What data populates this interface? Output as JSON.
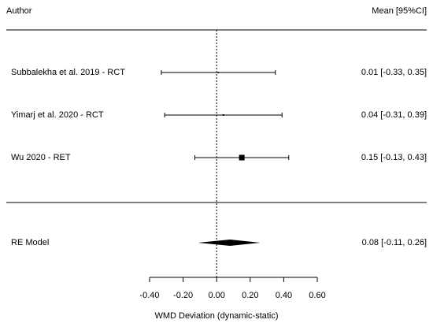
{
  "header": {
    "author_label": "Author",
    "ci_label": "Mean [95%CI]"
  },
  "chart_data": {
    "type": "forest",
    "xlabel": "WMD Deviation (dynamic-static)",
    "xlim": [
      -0.4,
      0.6
    ],
    "ticks": [
      -0.4,
      -0.2,
      0,
      0.2,
      0.4,
      0.6
    ],
    "tick_labels": [
      "-0.40",
      "-0.20",
      "0.00",
      "0.20",
      "0.40",
      "0.60"
    ],
    "reference_line": 0,
    "studies": [
      {
        "label": "Subbalekha et al. 2019 - RCT",
        "mean": 0.01,
        "lower": -0.33,
        "upper": 0.35,
        "ci_text": "0.01 [-0.33, 0.35]",
        "weight": 0.05
      },
      {
        "label": "Yimarj et al. 2020  - RCT",
        "mean": 0.04,
        "lower": -0.31,
        "upper": 0.39,
        "ci_text": "0.04 [-0.31, 0.39]",
        "weight": 0.08
      },
      {
        "label": "Wu 2020 - RET",
        "mean": 0.15,
        "lower": -0.13,
        "upper": 0.43,
        "ci_text": "0.15 [-0.13, 0.43]",
        "weight": 1.0
      }
    ],
    "summary": {
      "label": "RE Model",
      "mean": 0.08,
      "lower": -0.11,
      "upper": 0.26,
      "ci_text": "0.08 [-0.11, 0.26]"
    }
  }
}
